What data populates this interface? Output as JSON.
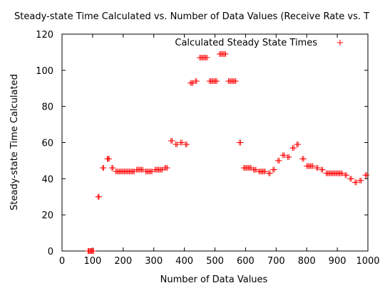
{
  "chart_data": {
    "type": "scatter",
    "title": "Steady-state Time Calculated vs. Number of Data Values (Receive Rate vs. T",
    "xlabel": "Number of Data Values",
    "ylabel": "Steady-state Time Calculated",
    "xlim": [
      0,
      1000
    ],
    "ylim": [
      0,
      120
    ],
    "x_ticks": [
      0,
      100,
      200,
      300,
      400,
      500,
      600,
      700,
      800,
      900,
      1000
    ],
    "y_ticks": [
      0,
      20,
      40,
      60,
      80,
      100,
      120
    ],
    "grid": false,
    "legend_position": "top-right",
    "series": [
      {
        "name": "Calculated Steady State Times",
        "color": "#ff0000",
        "marker": "plus",
        "points": [
          [
            85,
            0
          ],
          [
            88,
            0
          ],
          [
            91,
            0
          ],
          [
            94,
            0
          ],
          [
            97,
            0
          ],
          [
            100,
            0
          ],
          [
            103,
            0
          ],
          [
            118,
            30
          ],
          [
            121,
            30
          ],
          [
            133,
            46
          ],
          [
            136,
            46
          ],
          [
            148,
            51
          ],
          [
            151,
            51
          ],
          [
            154,
            51
          ],
          [
            163,
            46
          ],
          [
            166,
            46
          ],
          [
            176,
            44
          ],
          [
            180,
            44
          ],
          [
            184,
            44
          ],
          [
            188,
            44
          ],
          [
            192,
            44
          ],
          [
            196,
            44
          ],
          [
            200,
            44
          ],
          [
            204,
            44
          ],
          [
            208,
            44
          ],
          [
            212,
            44
          ],
          [
            216,
            44
          ],
          [
            220,
            44
          ],
          [
            224,
            44
          ],
          [
            228,
            44
          ],
          [
            232,
            44
          ],
          [
            236,
            44
          ],
          [
            244,
            45
          ],
          [
            248,
            45
          ],
          [
            252,
            45
          ],
          [
            256,
            45
          ],
          [
            260,
            45
          ],
          [
            264,
            45
          ],
          [
            274,
            44
          ],
          [
            278,
            44
          ],
          [
            282,
            44
          ],
          [
            286,
            44
          ],
          [
            290,
            44
          ],
          [
            294,
            44
          ],
          [
            304,
            45
          ],
          [
            308,
            45
          ],
          [
            312,
            45
          ],
          [
            316,
            45
          ],
          [
            320,
            45
          ],
          [
            324,
            45
          ],
          [
            328,
            45
          ],
          [
            336,
            46
          ],
          [
            340,
            46
          ],
          [
            344,
            46
          ],
          [
            356,
            61
          ],
          [
            360,
            61
          ],
          [
            372,
            59
          ],
          [
            376,
            59
          ],
          [
            388,
            60
          ],
          [
            392,
            60
          ],
          [
            404,
            59
          ],
          [
            408,
            59
          ],
          [
            420,
            93
          ],
          [
            424,
            93
          ],
          [
            428,
            93
          ],
          [
            436,
            94
          ],
          [
            440,
            94
          ],
          [
            450,
            107
          ],
          [
            454,
            107
          ],
          [
            458,
            107
          ],
          [
            462,
            107
          ],
          [
            466,
            107
          ],
          [
            470,
            107
          ],
          [
            474,
            107
          ],
          [
            482,
            94
          ],
          [
            486,
            94
          ],
          [
            490,
            94
          ],
          [
            494,
            94
          ],
          [
            498,
            94
          ],
          [
            502,
            94
          ],
          [
            506,
            94
          ],
          [
            515,
            109
          ],
          [
            519,
            109
          ],
          [
            523,
            109
          ],
          [
            527,
            109
          ],
          [
            531,
            109
          ],
          [
            535,
            109
          ],
          [
            544,
            94
          ],
          [
            548,
            94
          ],
          [
            552,
            94
          ],
          [
            556,
            94
          ],
          [
            560,
            94
          ],
          [
            564,
            94
          ],
          [
            568,
            94
          ],
          [
            580,
            60
          ],
          [
            584,
            60
          ],
          [
            594,
            46
          ],
          [
            598,
            46
          ],
          [
            602,
            46
          ],
          [
            606,
            46
          ],
          [
            610,
            46
          ],
          [
            614,
            46
          ],
          [
            618,
            46
          ],
          [
            626,
            45
          ],
          [
            630,
            45
          ],
          [
            634,
            45
          ],
          [
            644,
            44
          ],
          [
            648,
            44
          ],
          [
            652,
            44
          ],
          [
            656,
            44
          ],
          [
            660,
            44
          ],
          [
            664,
            44
          ],
          [
            676,
            43
          ],
          [
            680,
            43
          ],
          [
            690,
            45
          ],
          [
            694,
            45
          ],
          [
            706,
            50
          ],
          [
            710,
            50
          ],
          [
            722,
            53
          ],
          [
            726,
            53
          ],
          [
            738,
            52
          ],
          [
            742,
            52
          ],
          [
            754,
            57
          ],
          [
            758,
            57
          ],
          [
            768,
            59
          ],
          [
            772,
            59
          ],
          [
            786,
            51
          ],
          [
            790,
            51
          ],
          [
            800,
            47
          ],
          [
            804,
            47
          ],
          [
            808,
            47
          ],
          [
            812,
            47
          ],
          [
            816,
            47
          ],
          [
            820,
            47
          ],
          [
            832,
            46
          ],
          [
            836,
            46
          ],
          [
            848,
            45
          ],
          [
            852,
            45
          ],
          [
            864,
            43
          ],
          [
            868,
            43
          ],
          [
            872,
            43
          ],
          [
            876,
            43
          ],
          [
            880,
            43
          ],
          [
            884,
            43
          ],
          [
            888,
            43
          ],
          [
            892,
            43
          ],
          [
            896,
            43
          ],
          [
            900,
            43
          ],
          [
            904,
            43
          ],
          [
            908,
            43
          ],
          [
            912,
            43
          ],
          [
            916,
            43
          ],
          [
            926,
            42
          ],
          [
            930,
            42
          ],
          [
            942,
            40
          ],
          [
            946,
            40
          ],
          [
            958,
            38
          ],
          [
            962,
            38
          ],
          [
            974,
            39
          ],
          [
            978,
            39
          ],
          [
            992,
            42
          ],
          [
            996,
            42
          ]
        ]
      }
    ]
  }
}
